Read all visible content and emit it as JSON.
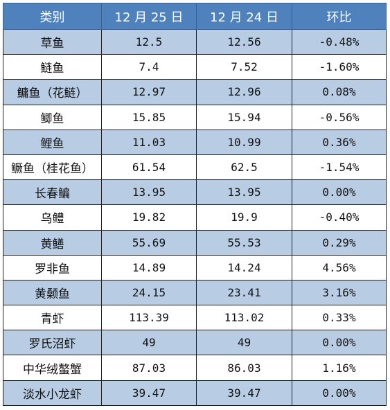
{
  "table": {
    "headers": [
      "类别",
      "12 月 25 日",
      "12 月 24 日",
      "环比"
    ],
    "rows": [
      {
        "category": "草鱼",
        "dec25": "12.5",
        "dec24": "12.56",
        "change": "-0.48%"
      },
      {
        "category": "鲢鱼",
        "dec25": "7.4",
        "dec24": "7.52",
        "change": "-1.60%"
      },
      {
        "category": "鳙鱼（花鲢）",
        "dec25": "12.97",
        "dec24": "12.96",
        "change": "0.08%"
      },
      {
        "category": "鲫鱼",
        "dec25": "15.85",
        "dec24": "15.94",
        "change": "-0.56%"
      },
      {
        "category": "鲤鱼",
        "dec25": "11.03",
        "dec24": "10.99",
        "change": "0.36%"
      },
      {
        "category": "鳜鱼（桂花鱼）",
        "dec25": "61.54",
        "dec24": "62.5",
        "change": "-1.54%"
      },
      {
        "category": "长春鳊",
        "dec25": "13.95",
        "dec24": "13.95",
        "change": "0.00%"
      },
      {
        "category": "乌鳢",
        "dec25": "19.82",
        "dec24": "19.9",
        "change": "-0.40%"
      },
      {
        "category": "黄鳝",
        "dec25": "55.69",
        "dec24": "55.53",
        "change": "0.29%"
      },
      {
        "category": "罗非鱼",
        "dec25": "14.89",
        "dec24": "14.24",
        "change": "4.56%"
      },
      {
        "category": "黄颡鱼",
        "dec25": "24.15",
        "dec24": "23.41",
        "change": "3.16%"
      },
      {
        "category": "青虾",
        "dec25": "113.39",
        "dec24": "113.02",
        "change": "0.33%"
      },
      {
        "category": "罗氏沼虾",
        "dec25": "49",
        "dec24": "49",
        "change": "0.00%"
      },
      {
        "category": "中华绒螯蟹",
        "dec25": "87.03",
        "dec24": "86.03",
        "change": "1.16%"
      },
      {
        "category": "淡水小龙虾",
        "dec25": "39.47",
        "dec24": "39.47",
        "change": "0.00%"
      }
    ]
  },
  "colors": {
    "header_bg": "#4f81bd",
    "header_text": "#ffffff",
    "band_row": "#b8cce4",
    "plain_row": "#ffffff",
    "border": "#1f1f1f"
  }
}
